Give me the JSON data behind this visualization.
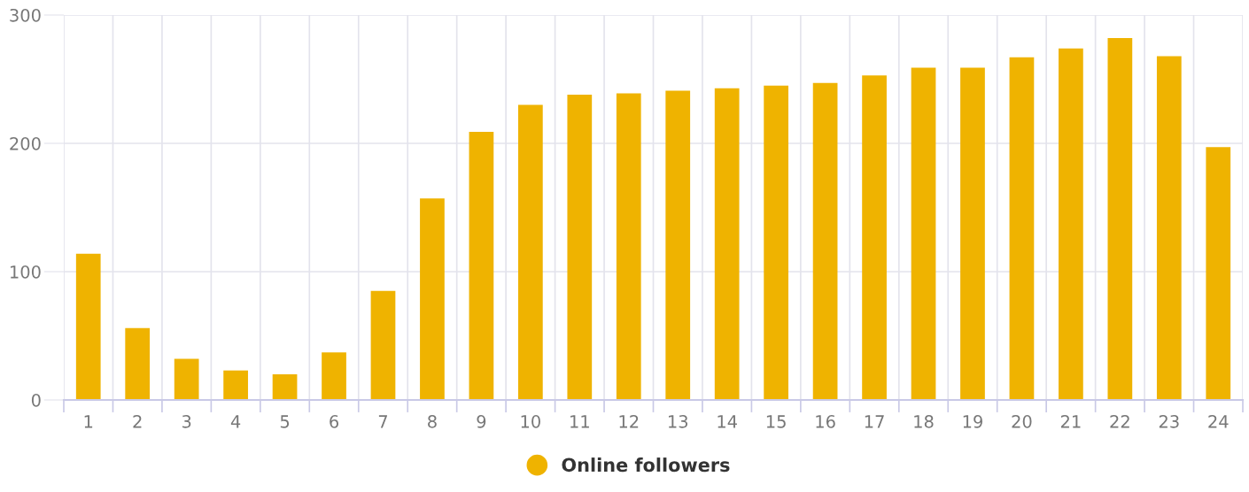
{
  "chart_data": {
    "type": "bar",
    "categories": [
      "1",
      "2",
      "3",
      "4",
      "5",
      "6",
      "7",
      "8",
      "9",
      "10",
      "11",
      "12",
      "13",
      "14",
      "15",
      "16",
      "17",
      "18",
      "19",
      "20",
      "21",
      "22",
      "23",
      "24"
    ],
    "series": [
      {
        "name": "Online followers",
        "color": "#efb300",
        "values": [
          114,
          56,
          32,
          23,
          20,
          37,
          85,
          157,
          209,
          230,
          238,
          239,
          241,
          243,
          245,
          247,
          253,
          259,
          259,
          267,
          274,
          282,
          268,
          197
        ]
      }
    ],
    "ylim": [
      0,
      300
    ],
    "yticks": [
      0,
      100,
      200,
      300
    ],
    "grid": true,
    "legend": "bottom"
  }
}
